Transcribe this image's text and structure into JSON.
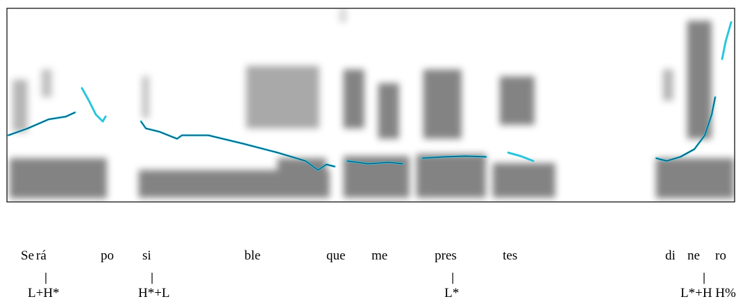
{
  "syllables": [
    "Se",
    "rá",
    "po",
    "si",
    "ble",
    "que",
    "me",
    "pres",
    "tes",
    "di",
    "ne",
    "ro"
  ],
  "tones": [
    "L+H*",
    "H*+L",
    "L*",
    "L*+H H%"
  ]
}
